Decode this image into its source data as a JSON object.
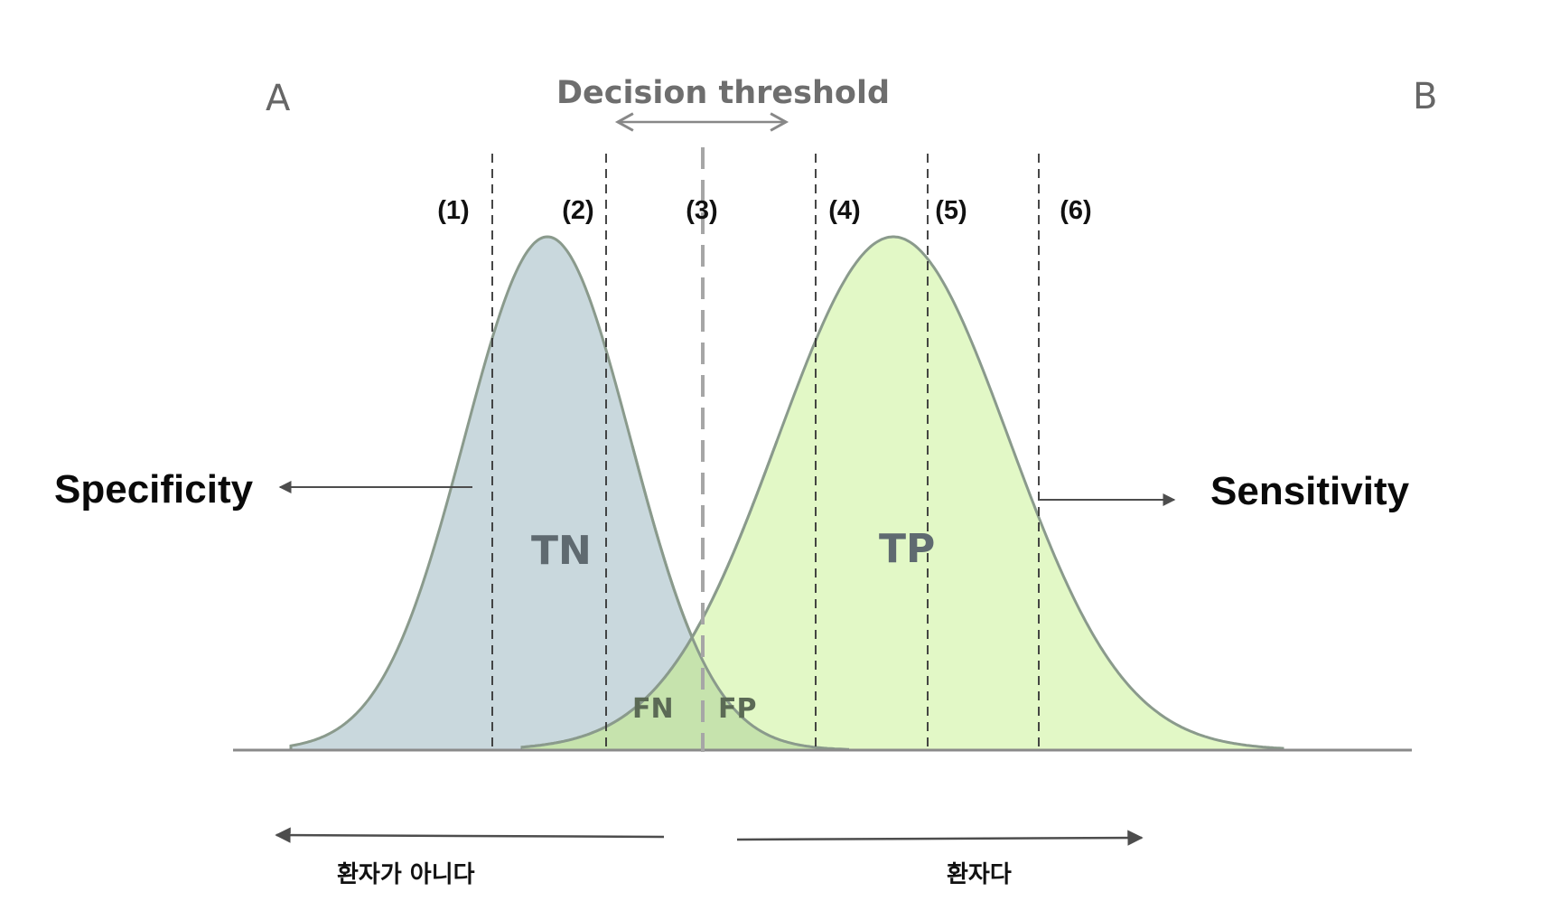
{
  "labels": {
    "corner_left": "A",
    "corner_right": "B",
    "decision_threshold": "Decision threshold",
    "specificity": "Specificity",
    "sensitivity": "Sensitivity",
    "true_negative": "TN",
    "true_positive": "TP",
    "false_negative": "FN",
    "false_positive": "FP",
    "not_patient": "환자가 아니다",
    "patient": "환자다"
  },
  "thresholds": [
    "(1)",
    "(2)",
    "(3)",
    "(4)",
    "(5)",
    "(6)"
  ],
  "colors": {
    "negative_fill": "#c9d8dd",
    "positive_fill": "#e2f8c6",
    "overlap_fill": "#c6e3ad",
    "curve_stroke": "#8a9a8c",
    "arrow": "#4d4d4d",
    "threshold_arrow": "#888888"
  }
}
